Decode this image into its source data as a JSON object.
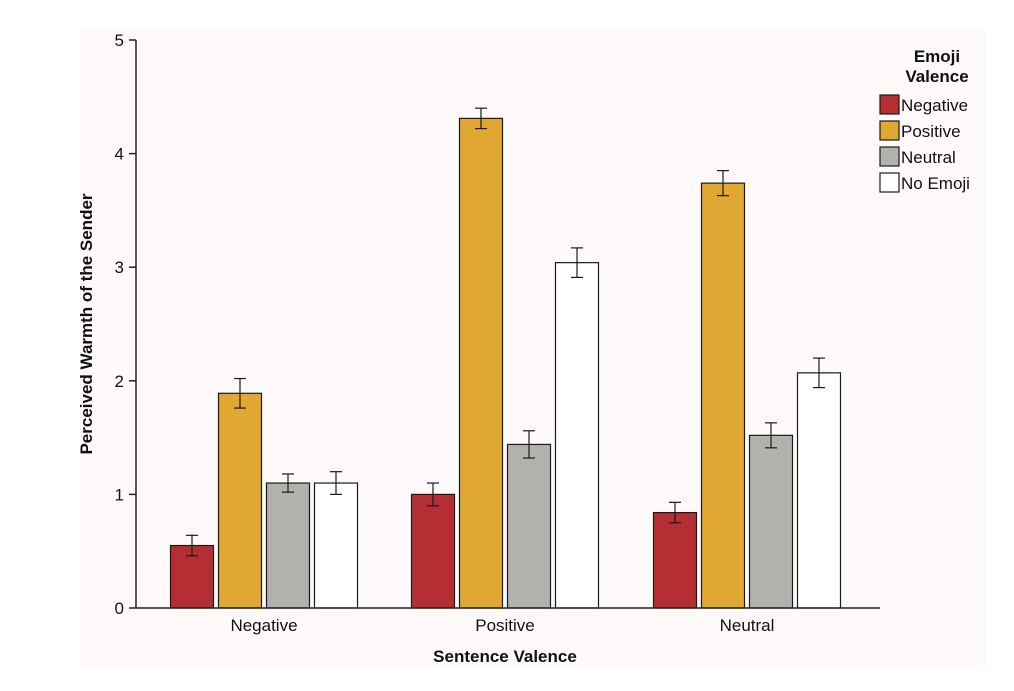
{
  "chart_data": {
    "type": "bar",
    "title": "",
    "xlabel": "Sentence Valence",
    "ylabel": "Perceived Warmth of the Sender",
    "categories": [
      "Negative",
      "Positive",
      "Neutral"
    ],
    "ylim": [
      0,
      5
    ],
    "yticks": [
      "0",
      "1",
      "2",
      "3",
      "4",
      "5"
    ],
    "legend_title_lines": [
      "Emoji",
      "Valence"
    ],
    "legend_position": "top-right",
    "series": [
      {
        "name": "Negative",
        "color": "#b52e34",
        "values": [
          0.55,
          1.0,
          0.84
        ],
        "errors": [
          0.09,
          0.1,
          0.09
        ]
      },
      {
        "name": "Positive",
        "color": "#e0a832",
        "values": [
          1.89,
          4.31,
          3.74
        ],
        "errors": [
          0.13,
          0.09,
          0.11
        ]
      },
      {
        "name": "Neutral",
        "color": "#b3b1ae",
        "values": [
          1.1,
          1.44,
          1.52
        ],
        "errors": [
          0.08,
          0.12,
          0.11
        ]
      },
      {
        "name": "No Emoji",
        "color": "#ffffff",
        "values": [
          1.1,
          3.04,
          2.07
        ],
        "errors": [
          0.1,
          0.13,
          0.13
        ]
      }
    ]
  }
}
